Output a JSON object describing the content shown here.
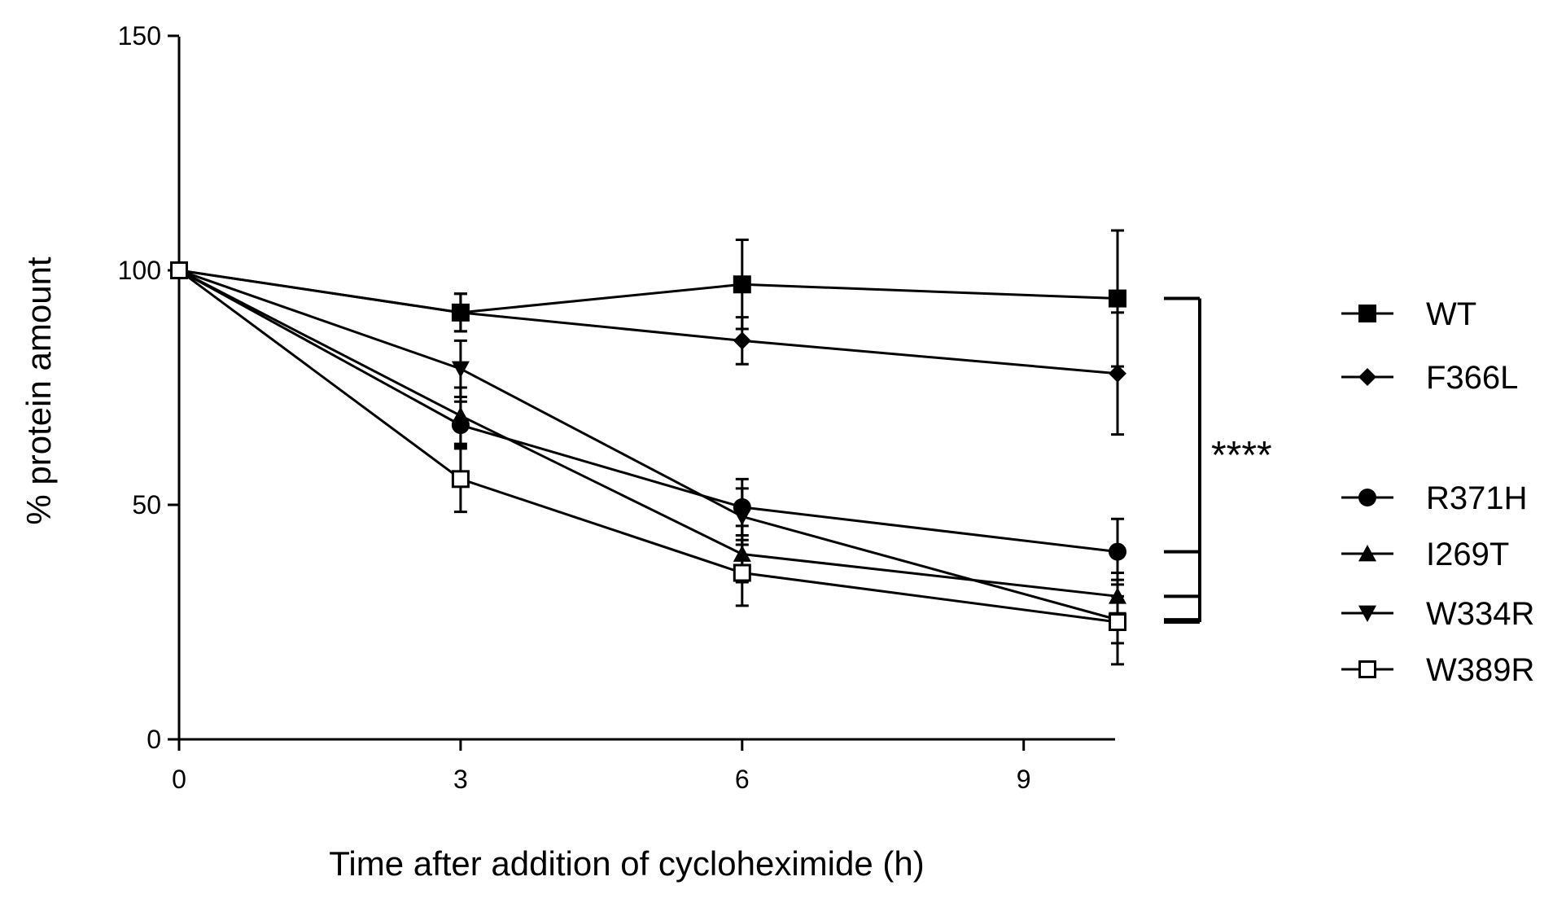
{
  "chart_data": {
    "type": "line",
    "title": "",
    "xlabel": "Time after addition of cycloheximide (h)",
    "ylabel": "% protein amount",
    "xlim": [
      0,
      10
    ],
    "ylim": [
      0,
      150
    ],
    "xticks": [
      0,
      3,
      6,
      9
    ],
    "yticks": [
      0,
      50,
      100,
      150
    ],
    "x": [
      0,
      3,
      6,
      10
    ],
    "grid": false,
    "legend_position": "right",
    "series": [
      {
        "name": "WT",
        "marker": "filled-square",
        "values": [
          100,
          91,
          97,
          94
        ],
        "errors": [
          0,
          4,
          9.5,
          14.5
        ]
      },
      {
        "name": "F366L",
        "marker": "filled-diamond",
        "values": [
          100,
          91,
          85,
          78
        ],
        "errors": [
          0,
          4,
          5,
          13
        ]
      },
      {
        "name": "R371H",
        "marker": "filled-circle",
        "values": [
          100,
          67,
          49.5,
          40
        ],
        "errors": [
          0,
          5,
          6,
          7
        ]
      },
      {
        "name": "I269T",
        "marker": "filled-triangle-up",
        "values": [
          100,
          69,
          39.5,
          30.5
        ],
        "errors": [
          0,
          6,
          6,
          5
        ]
      },
      {
        "name": "W334R",
        "marker": "filled-triangle-down",
        "values": [
          100,
          79,
          47.5,
          25.5
        ],
        "errors": [
          0,
          6,
          6,
          5
        ]
      },
      {
        "name": "W389R",
        "marker": "open-square",
        "values": [
          100,
          55.5,
          35.5,
          25
        ],
        "errors": [
          0,
          7,
          7,
          9
        ]
      }
    ],
    "annotations": [
      {
        "type": "significance-bracket",
        "text": "****",
        "series": [
          "WT",
          "R371H",
          "I269T",
          "W334R",
          "W389R"
        ]
      }
    ]
  }
}
